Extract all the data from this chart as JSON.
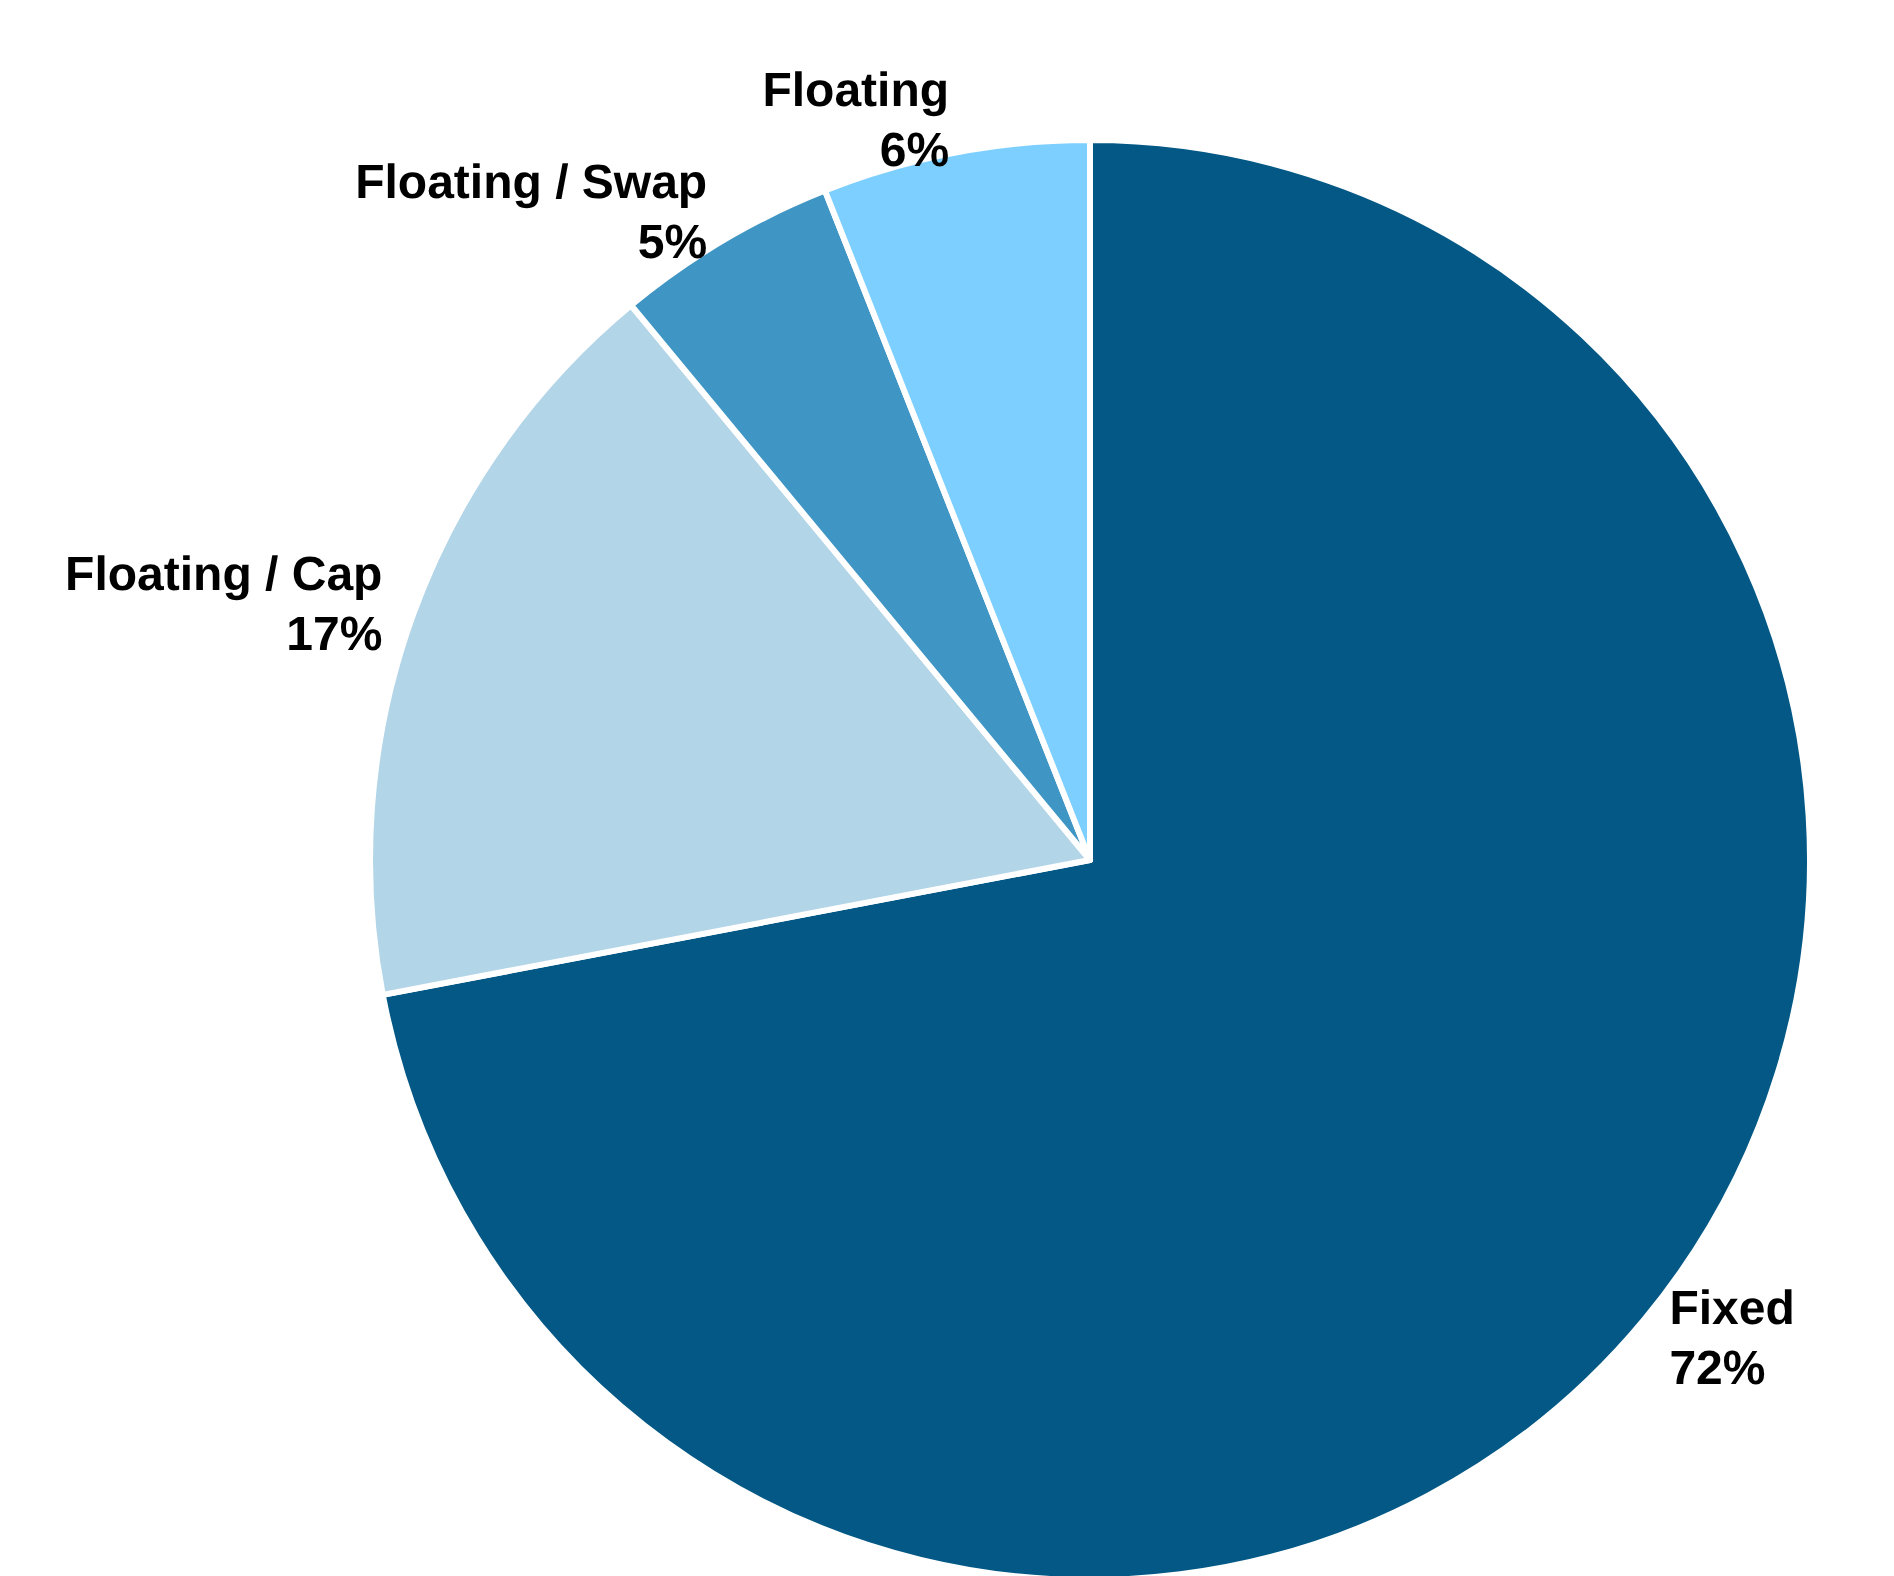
{
  "chart_data": {
    "type": "pie",
    "categories": [
      "Fixed",
      "Floating / Cap",
      "Floating / Swap",
      "Floating"
    ],
    "values": [
      72,
      17,
      5,
      6
    ],
    "value_labels": [
      "72%",
      "17%",
      "5%",
      "6%"
    ],
    "colors": [
      "#035885",
      "#b3d5e8",
      "#3f95c4",
      "#7dcfff"
    ],
    "legend": false
  }
}
